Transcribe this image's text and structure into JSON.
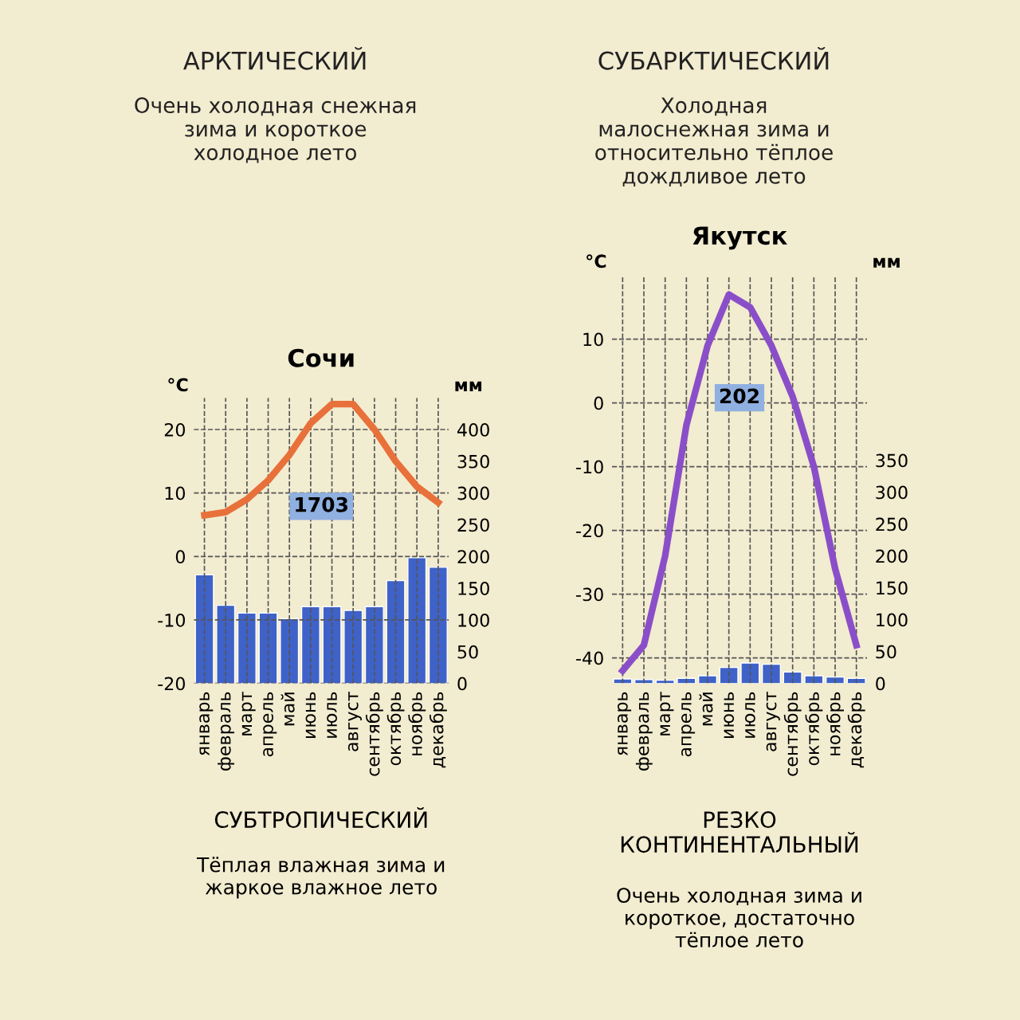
{
  "chart_data": [
    {
      "type": "other",
      "title": "АРКТИЧЕСКИЙ",
      "annotations": [
        "Очень холодная снежная\nзима и короткое\nхолодное лето"
      ]
    },
    {
      "type": "other",
      "title": "СУБАРКТИЧЕСКИЙ",
      "annotations": [
        "Холодная\nмалоснежная зима и\nотносительно тёплое\nдождливое лето"
      ]
    },
    {
      "type": "bar",
      "title": "Сочи",
      "ylabel": "°C",
      "y2label": "мм",
      "categories": [
        "январь",
        "февраль",
        "март",
        "апрель",
        "май",
        "июнь",
        "июль",
        "август",
        "сентябрь",
        "октябрь",
        "ноябрь",
        "декабрь"
      ],
      "series": [
        {
          "type": "bar",
          "axis": "y2",
          "color": "#3f62c8",
          "values": [
            171,
            123,
            111,
            111,
            102,
            121,
            121,
            115,
            121,
            162,
            198,
            183
          ]
        },
        {
          "type": "line",
          "color": "#e8703a",
          "values": [
            6.5,
            7,
            9,
            12,
            16,
            21,
            24,
            24,
            20,
            15,
            11,
            8.5
          ]
        }
      ],
      "ylim": [
        -20,
        25
      ],
      "yticks": [
        -20,
        -10,
        0,
        10,
        20
      ],
      "y2lim": [
        0,
        450
      ],
      "y2ticks": [
        0,
        50,
        100,
        150,
        200,
        250,
        300,
        350,
        400
      ],
      "grid": true,
      "marker": "none",
      "annotations": [
        "1703",
        "СУБТРОПИЧЕСКИЙ",
        "Тёплая влажная зима и\nжаркое влажное лето"
      ]
    },
    {
      "type": "bar",
      "title": "Якутск",
      "ylabel": "°C",
      "y2label": "мм",
      "categories": [
        "январь",
        "февраль",
        "март",
        "апрель",
        "май",
        "июнь",
        "июль",
        "август",
        "сентябрь",
        "октябрь",
        "ноябрь",
        "декабрь"
      ],
      "series": [
        {
          "type": "bar",
          "axis": "y2",
          "color": "#3f62c8",
          "values": [
            7,
            6,
            5,
            8,
            12,
            25,
            32,
            30,
            18,
            12,
            10,
            8
          ]
        },
        {
          "type": "line",
          "color": "#8a4fc8",
          "values": [
            -42,
            -38,
            -24,
            -3.5,
            9,
            17,
            15,
            9,
            1,
            -10,
            -26,
            -38
          ]
        }
      ],
      "ylim": [
        -44,
        20
      ],
      "yticks": [
        -40,
        -30,
        -20,
        -10,
        0,
        10
      ],
      "y2lim": [
        0,
        640
      ],
      "y2ticks": [
        0,
        50,
        100,
        150,
        200,
        250,
        300,
        350
      ],
      "grid": true,
      "marker": "none",
      "annotations": [
        "202",
        "РЕЗКО\nКОНТИНЕНТАЛЬНЫЙ",
        "Очень холодная зима и\nкороткое, достаточно\nтёплое лето"
      ]
    }
  ]
}
